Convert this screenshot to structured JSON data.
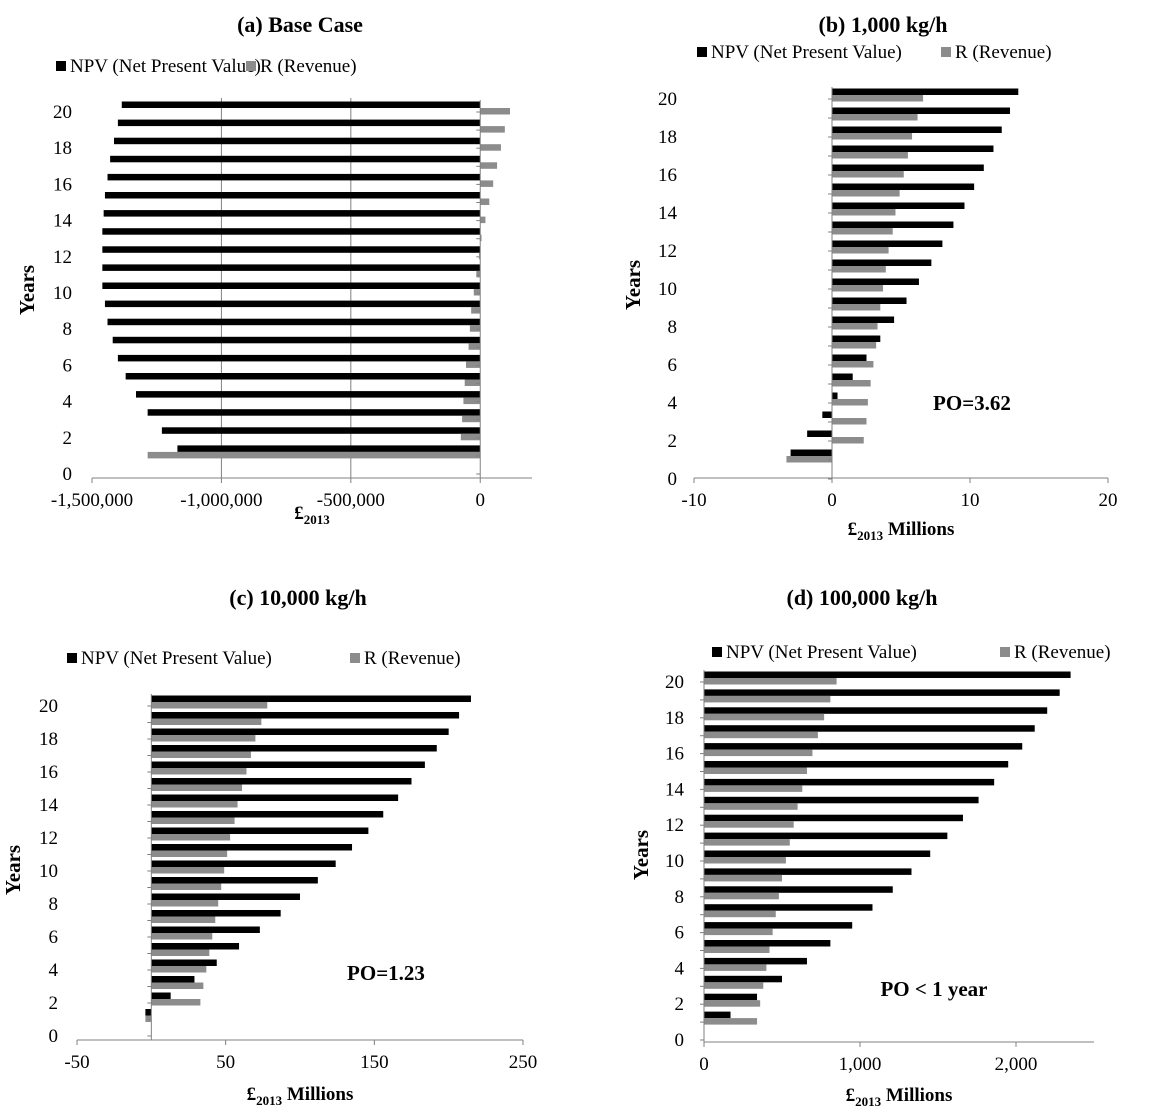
{
  "colors": {
    "npv": "#000000",
    "revenue": "#8c8c8c",
    "axis": "#808080",
    "grid": "#808080"
  },
  "chart_data": [
    {
      "panel": "a",
      "type": "bar",
      "orientation": "horizontal",
      "title": "(a) Base Case",
      "xlabel": "£2013",
      "xlabel_main": "£",
      "xlabel_sub": "2013",
      "xlabel_suffix": "",
      "ylabel": "Years",
      "xlim": [
        -1500000,
        200000
      ],
      "ylim": [
        0,
        20
      ],
      "xticks": [
        -1500000,
        -1000000,
        -500000,
        0
      ],
      "xtick_labels": [
        "-1,500,000",
        "-1,000,000",
        "-500,000",
        "0"
      ],
      "yticks": [
        0,
        2,
        4,
        6,
        8,
        10,
        12,
        14,
        16,
        18,
        20
      ],
      "ytick_labels": [
        "0",
        "2",
        "4",
        "6",
        "8",
        "10",
        "12",
        "14",
        "16",
        "18",
        "20"
      ],
      "grid": "vertical major gridlines",
      "legend": "top",
      "annotation": "",
      "categories": [
        1,
        2,
        3,
        4,
        5,
        6,
        7,
        8,
        9,
        10,
        11,
        12,
        13,
        14,
        15,
        16,
        17,
        18,
        19,
        20
      ],
      "series": [
        {
          "name": "NPV  (Net Present Value)",
          "values": [
            -1170000,
            -1230000,
            -1285000,
            -1330000,
            -1370000,
            -1400000,
            -1420000,
            -1440000,
            -1450000,
            -1460000,
            -1460000,
            -1460000,
            -1460000,
            -1455000,
            -1450000,
            -1440000,
            -1430000,
            -1415000,
            -1400000,
            -1385000
          ]
        },
        {
          "name": "R (Revenue)",
          "values": [
            -1285000,
            -75000,
            -70000,
            -65000,
            -60000,
            -55000,
            -45000,
            -40000,
            -35000,
            -25000,
            -15000,
            -5000,
            5000,
            20000,
            35000,
            50000,
            65000,
            80000,
            95000,
            115000
          ]
        }
      ]
    },
    {
      "panel": "b",
      "type": "bar",
      "orientation": "horizontal",
      "title": "(b) 1,000 kg/h",
      "xlabel": "£2013 Millions",
      "xlabel_main": "£",
      "xlabel_sub": "2013",
      "xlabel_suffix": " Millions",
      "ylabel": "Years",
      "xlim": [
        -10,
        20
      ],
      "ylim": [
        0,
        20
      ],
      "xticks": [
        -10,
        0,
        10,
        20
      ],
      "xtick_labels": [
        "-10",
        "0",
        "10",
        "20"
      ],
      "yticks": [
        0,
        2,
        4,
        6,
        8,
        10,
        12,
        14,
        16,
        18,
        20
      ],
      "ytick_labels": [
        "0",
        "2",
        "4",
        "6",
        "8",
        "10",
        "12",
        "14",
        "16",
        "18",
        "20"
      ],
      "grid": "none",
      "legend": "top",
      "annotation": "PO=3.62",
      "categories": [
        1,
        2,
        3,
        4,
        5,
        6,
        7,
        8,
        9,
        10,
        11,
        12,
        13,
        14,
        15,
        16,
        17,
        18,
        19,
        20
      ],
      "series": [
        {
          "name": "NPV  (Net Present Value)",
          "values": [
            -3.0,
            -1.8,
            -0.7,
            0.4,
            1.5,
            2.5,
            3.5,
            4.5,
            5.4,
            6.3,
            7.2,
            8.0,
            8.8,
            9.6,
            10.3,
            11.0,
            11.7,
            12.3,
            12.9,
            13.5
          ]
        },
        {
          "name": "R (Revenue)",
          "values": [
            -3.3,
            2.3,
            2.5,
            2.6,
            2.8,
            3.0,
            3.2,
            3.3,
            3.5,
            3.7,
            3.9,
            4.1,
            4.4,
            4.6,
            4.9,
            5.2,
            5.5,
            5.8,
            6.2,
            6.6
          ]
        }
      ]
    },
    {
      "panel": "c",
      "type": "bar",
      "orientation": "horizontal",
      "title": "(c) 10,000 kg/h",
      "xlabel": "£2013 Millions",
      "xlabel_main": "£",
      "xlabel_sub": "2013",
      "xlabel_suffix": " Millions",
      "ylabel": "Years",
      "xlim": [
        -50,
        250
      ],
      "ylim": [
        0,
        20
      ],
      "xticks": [
        -50,
        50,
        150,
        250
      ],
      "xtick_labels": [
        "-50",
        "50",
        "150",
        "250"
      ],
      "yticks": [
        0,
        2,
        4,
        6,
        8,
        10,
        12,
        14,
        16,
        18,
        20
      ],
      "ytick_labels": [
        "0",
        "2",
        "4",
        "6",
        "8",
        "10",
        "12",
        "14",
        "16",
        "18",
        "20"
      ],
      "grid": "none",
      "legend": "top",
      "annotation": "PO=1.23",
      "categories": [
        1,
        2,
        3,
        4,
        5,
        6,
        7,
        8,
        9,
        10,
        11,
        12,
        13,
        14,
        15,
        16,
        17,
        18,
        19,
        20
      ],
      "series": [
        {
          "name": "NPV  (Net Present Value)",
          "values": [
            -4,
            13,
            29,
            44,
            59,
            73,
            87,
            100,
            112,
            124,
            135,
            146,
            156,
            166,
            175,
            184,
            192,
            200,
            207,
            215
          ]
        },
        {
          "name": "R (Revenue)",
          "values": [
            -4,
            33,
            35,
            37,
            39,
            41,
            43,
            45,
            47,
            49,
            51,
            53,
            56,
            58,
            61,
            64,
            67,
            70,
            74,
            78
          ]
        }
      ]
    },
    {
      "panel": "d",
      "type": "bar",
      "orientation": "horizontal",
      "title": "(d) 100,000 kg/h",
      "xlabel": "£2013 Millions",
      "xlabel_main": "£",
      "xlabel_sub": "2013",
      "xlabel_suffix": " Millions",
      "ylabel": "Years",
      "xlim": [
        0,
        2500
      ],
      "ylim": [
        0,
        20
      ],
      "xticks": [
        0,
        1000,
        2000
      ],
      "xtick_labels": [
        "0",
        "1,000",
        "2,000"
      ],
      "yticks": [
        0,
        2,
        4,
        6,
        8,
        10,
        12,
        14,
        16,
        18,
        20
      ],
      "ytick_labels": [
        "0",
        "2",
        "4",
        "6",
        "8",
        "10",
        "12",
        "14",
        "16",
        "18",
        "20"
      ],
      "grid": "none",
      "legend": "top",
      "annotation": "PO < 1 year",
      "categories": [
        1,
        2,
        3,
        4,
        5,
        6,
        7,
        8,
        9,
        10,
        11,
        12,
        13,
        14,
        15,
        16,
        17,
        18,
        19,
        20
      ],
      "series": [
        {
          "name": "NPV  (Net Present Value)",
          "values": [
            170,
            340,
            500,
            660,
            810,
            950,
            1080,
            1210,
            1330,
            1450,
            1560,
            1660,
            1760,
            1860,
            1950,
            2040,
            2120,
            2200,
            2280,
            2350
          ]
        },
        {
          "name": "R (Revenue)",
          "values": [
            340,
            360,
            380,
            400,
            420,
            440,
            460,
            480,
            500,
            525,
            550,
            575,
            600,
            630,
            660,
            695,
            730,
            770,
            810,
            850
          ]
        }
      ]
    }
  ]
}
